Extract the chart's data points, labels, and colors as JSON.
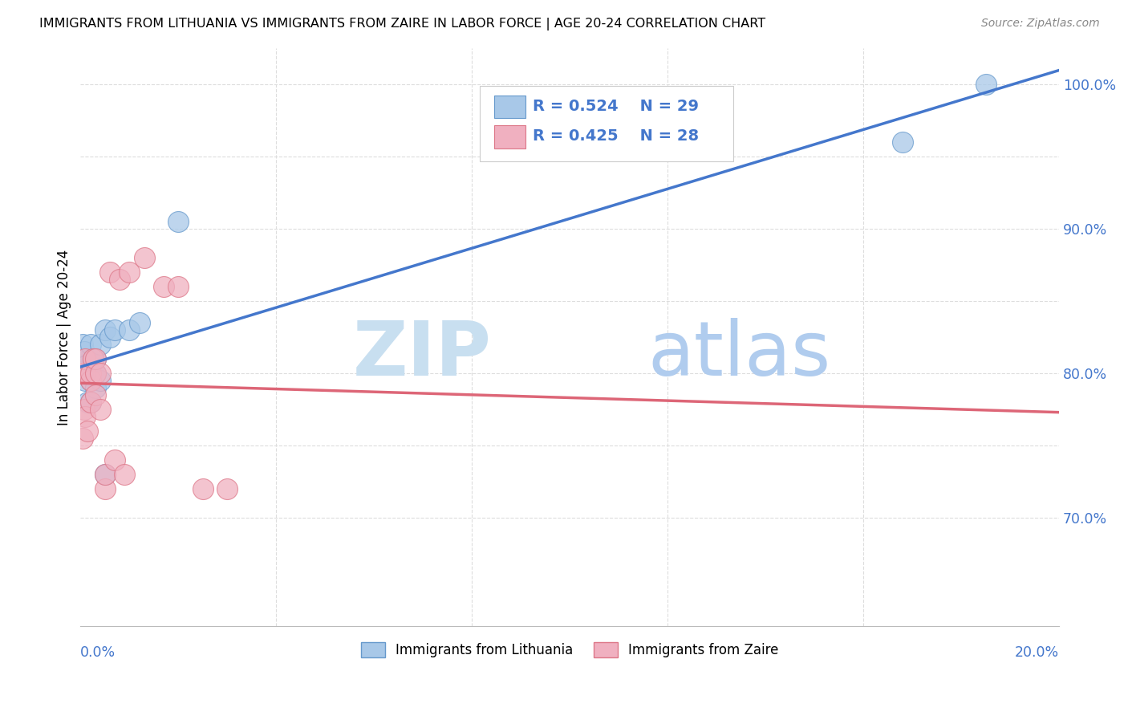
{
  "title": "IMMIGRANTS FROM LITHUANIA VS IMMIGRANTS FROM ZAIRE IN LABOR FORCE | AGE 20-24 CORRELATION CHART",
  "source": "Source: ZipAtlas.com",
  "ylabel": "In Labor Force | Age 20-24",
  "ytick_vals": [
    0.7,
    0.75,
    0.8,
    0.85,
    0.9,
    0.95,
    1.0
  ],
  "ytick_labels": [
    "70.0%",
    "",
    "80.0%",
    "",
    "90.0%",
    "",
    "100.0%"
  ],
  "xtick_vals": [
    0.0,
    0.04,
    0.08,
    0.12,
    0.16,
    0.2
  ],
  "color_lithuania_fill": "#a8c8e8",
  "color_lithuania_edge": "#6699cc",
  "color_zaire_fill": "#f0b0c0",
  "color_zaire_edge": "#dd7788",
  "color_line_lithuania": "#4477cc",
  "color_line_zaire": "#dd6677",
  "color_line_zaire_ext": "#ccaaaa",
  "color_grid": "#dddddd",
  "color_tick_labels": "#4477cc",
  "watermark_zip_color": "#c8dff0",
  "watermark_atlas_color": "#b0ccee",
  "legend_r1": "R = 0.524",
  "legend_n1": "N = 29",
  "legend_r2": "R = 0.425",
  "legend_n2": "N = 28",
  "lithuania_x": [
    0.0005,
    0.0005,
    0.0005,
    0.0008,
    0.0008,
    0.001,
    0.001,
    0.001,
    0.0015,
    0.0015,
    0.002,
    0.002,
    0.002,
    0.0025,
    0.0025,
    0.003,
    0.003,
    0.003,
    0.004,
    0.004,
    0.005,
    0.005,
    0.006,
    0.007,
    0.01,
    0.012,
    0.02,
    0.168,
    0.185
  ],
  "lithuania_y": [
    0.8,
    0.81,
    0.82,
    0.805,
    0.815,
    0.795,
    0.8,
    0.805,
    0.78,
    0.8,
    0.78,
    0.795,
    0.82,
    0.8,
    0.81,
    0.79,
    0.8,
    0.81,
    0.795,
    0.82,
    0.73,
    0.83,
    0.825,
    0.83,
    0.83,
    0.835,
    0.905,
    0.96,
    1.0
  ],
  "zaire_x": [
    0.0005,
    0.0005,
    0.0008,
    0.001,
    0.001,
    0.001,
    0.0015,
    0.002,
    0.002,
    0.002,
    0.0025,
    0.003,
    0.003,
    0.003,
    0.004,
    0.004,
    0.005,
    0.005,
    0.006,
    0.007,
    0.008,
    0.009,
    0.01,
    0.013,
    0.017,
    0.02,
    0.025,
    0.03
  ],
  "zaire_y": [
    0.755,
    0.8,
    0.775,
    0.77,
    0.8,
    0.81,
    0.76,
    0.78,
    0.795,
    0.8,
    0.81,
    0.785,
    0.8,
    0.81,
    0.775,
    0.8,
    0.72,
    0.73,
    0.87,
    0.74,
    0.865,
    0.73,
    0.87,
    0.88,
    0.86,
    0.86,
    0.72,
    0.72
  ],
  "xlim": [
    0.0,
    0.2
  ],
  "ylim": [
    0.625,
    1.025
  ]
}
